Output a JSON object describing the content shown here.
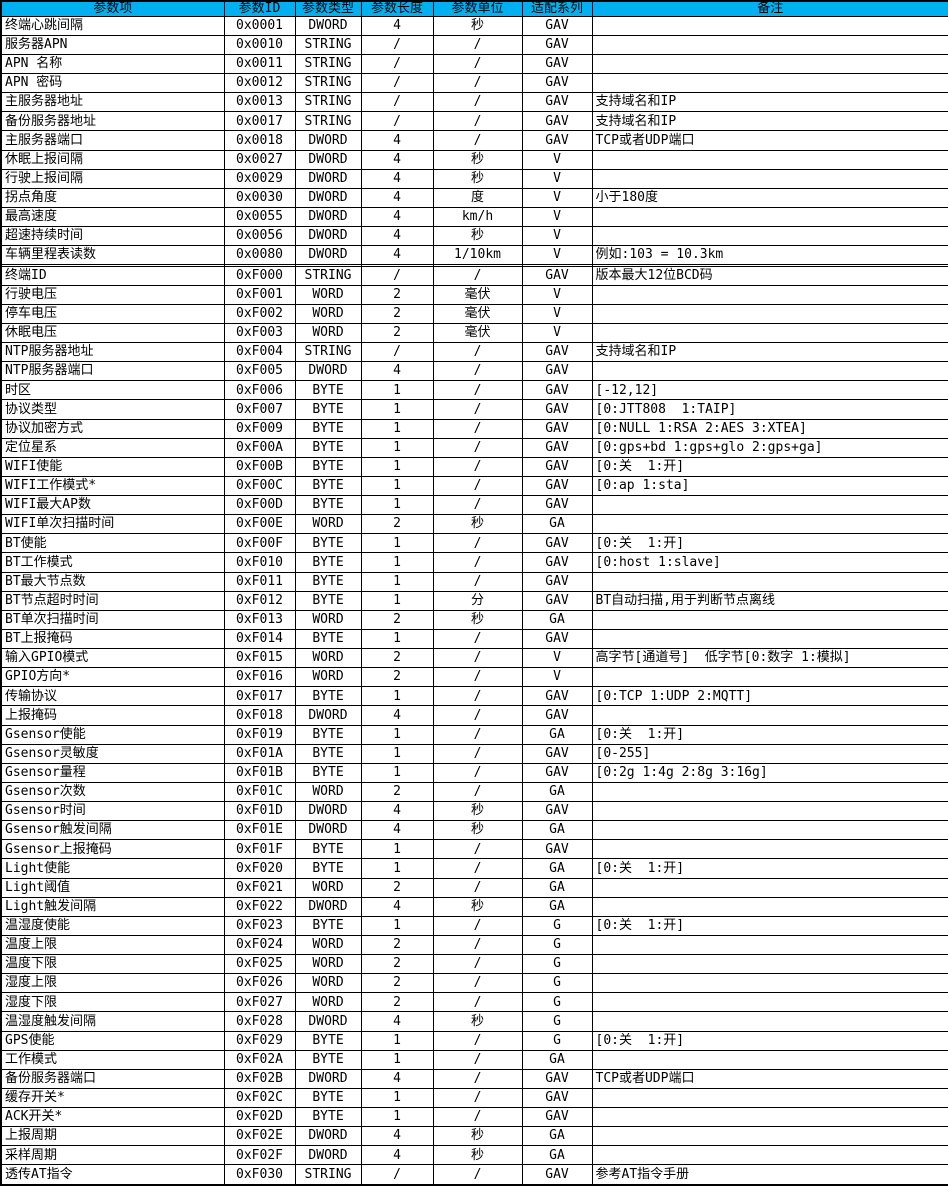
{
  "colors": {
    "header_bg": "#00B0F0",
    "header_text": "#000000",
    "border": "#000000",
    "row_bg": "#FFFFFF"
  },
  "table": {
    "columns": [
      "参数项",
      "参数ID",
      "参数类型",
      "参数长度",
      "参数单位",
      "适配系列",
      "备注"
    ],
    "rows": [
      [
        "终端心跳间隔",
        "0x0001",
        "DWORD",
        "4",
        "秒",
        "GAV",
        ""
      ],
      [
        "服务器APN",
        "0x0010",
        "STRING",
        "/",
        "/",
        "GAV",
        ""
      ],
      [
        "APN 名称",
        "0x0011",
        "STRING",
        "/",
        "/",
        "GAV",
        ""
      ],
      [
        "APN 密码",
        "0x0012",
        "STRING",
        "/",
        "/",
        "GAV",
        ""
      ],
      [
        "主服务器地址",
        "0x0013",
        "STRING",
        "/",
        "/",
        "GAV",
        "支持域名和IP"
      ],
      [
        "备份服务器地址",
        "0x0017",
        "STRING",
        "/",
        "/",
        "GAV",
        "支持域名和IP"
      ],
      [
        "主服务器端口",
        "0x0018",
        "DWORD",
        "4",
        "/",
        "GAV",
        "TCP或者UDP端口"
      ],
      [
        "休眠上报间隔",
        "0x0027",
        "DWORD",
        "4",
        "秒",
        "V",
        ""
      ],
      [
        "行驶上报间隔",
        "0x0029",
        "DWORD",
        "4",
        "秒",
        "V",
        ""
      ],
      [
        "拐点角度",
        "0x0030",
        "DWORD",
        "4",
        "度",
        "V",
        "小于180度"
      ],
      [
        "最高速度",
        "0x0055",
        "DWORD",
        "4",
        "km/h",
        "V",
        ""
      ],
      [
        "超速持续时间",
        "0x0056",
        "DWORD",
        "4",
        "秒",
        "V",
        ""
      ],
      [
        "车辆里程表读数",
        "0x0080",
        "DWORD",
        "4",
        "1/10km",
        "V",
        "例如:103 = 10.3km"
      ],
      [
        "",
        "",
        "",
        "",
        "",
        "",
        ""
      ],
      [
        "终端ID",
        "0xF000",
        "STRING",
        "/",
        "/",
        "GAV",
        "版本最大12位BCD码"
      ],
      [
        "行驶电压",
        "0xF001",
        "WORD",
        "2",
        "毫伏",
        "V",
        ""
      ],
      [
        "停车电压",
        "0xF002",
        "WORD",
        "2",
        "毫伏",
        "V",
        ""
      ],
      [
        "休眠电压",
        "0xF003",
        "WORD",
        "2",
        "毫伏",
        "V",
        ""
      ],
      [
        "NTP服务器地址",
        "0xF004",
        "STRING",
        "/",
        "/",
        "GAV",
        "支持域名和IP"
      ],
      [
        "NTP服务器端口",
        "0xF005",
        "DWORD",
        "4",
        "/",
        "GAV",
        ""
      ],
      [
        "时区",
        "0xF006",
        "BYTE",
        "1",
        "/",
        "GAV",
        "[-12,12]"
      ],
      [
        "协议类型",
        "0xF007",
        "BYTE",
        "1",
        "/",
        "GAV",
        "[0:JTT808  1:TAIP]"
      ],
      [
        "协议加密方式",
        "0xF009",
        "BYTE",
        "1",
        "/",
        "GAV",
        "[0:NULL 1:RSA 2:AES 3:XTEA]"
      ],
      [
        "定位星系",
        "0xF00A",
        "BYTE",
        "1",
        "/",
        "GAV",
        "[0:gps+bd 1:gps+glo 2:gps+ga]"
      ],
      [
        "WIFI使能",
        "0xF00B",
        "BYTE",
        "1",
        "/",
        "GAV",
        "[0:关  1:开]"
      ],
      [
        "WIFI工作模式*",
        "0xF00C",
        "BYTE",
        "1",
        "/",
        "GAV",
        "[0:ap 1:sta]"
      ],
      [
        "WIFI最大AP数",
        "0xF00D",
        "BYTE",
        "1",
        "/",
        "GAV",
        ""
      ],
      [
        "WIFI单次扫描时间",
        "0xF00E",
        "WORD",
        "2",
        "秒",
        "GA",
        ""
      ],
      [
        "BT使能",
        "0xF00F",
        "BYTE",
        "1",
        "/",
        "GAV",
        "[0:关  1:开]"
      ],
      [
        "BT工作模式",
        "0xF010",
        "BYTE",
        "1",
        "/",
        "GAV",
        "[0:host 1:slave]"
      ],
      [
        "BT最大节点数",
        "0xF011",
        "BYTE",
        "1",
        "/",
        "GAV",
        ""
      ],
      [
        "BT节点超时时间",
        "0xF012",
        "BYTE",
        "1",
        "分",
        "GAV",
        "BT自动扫描,用于判断节点离线"
      ],
      [
        "BT单次扫描时间",
        "0xF013",
        "WORD",
        "2",
        "秒",
        "GA",
        ""
      ],
      [
        "BT上报掩码",
        "0xF014",
        "BYTE",
        "1",
        "/",
        "GAV",
        ""
      ],
      [
        "输入GPIO模式",
        "0xF015",
        "WORD",
        "2",
        "/",
        "V",
        "高字节[通道号]  低字节[0:数字 1:模拟]"
      ],
      [
        "GPIO方向*",
        "0xF016",
        "WORD",
        "2",
        "/",
        "V",
        ""
      ],
      [
        "传输协议",
        "0xF017",
        "BYTE",
        "1",
        "/",
        "GAV",
        "[0:TCP 1:UDP 2:MQTT]"
      ],
      [
        "上报掩码",
        "0xF018",
        "DWORD",
        "4",
        "/",
        "GAV",
        ""
      ],
      [
        "Gsensor使能",
        "0xF019",
        "BYTE",
        "1",
        "/",
        "GA",
        "[0:关  1:开]"
      ],
      [
        "Gsensor灵敏度",
        "0xF01A",
        "BYTE",
        "1",
        "/",
        "GAV",
        "[0-255]"
      ],
      [
        "Gsensor量程",
        "0xF01B",
        "BYTE",
        "1",
        "/",
        "GAV",
        "[0:2g 1:4g 2:8g 3:16g]"
      ],
      [
        "Gsensor次数",
        "0xF01C",
        "WORD",
        "2",
        "/",
        "GA",
        ""
      ],
      [
        "Gsensor时间",
        "0xF01D",
        "DWORD",
        "4",
        "秒",
        "GAV",
        ""
      ],
      [
        "Gsensor触发间隔",
        "0xF01E",
        "DWORD",
        "4",
        "秒",
        "GA",
        ""
      ],
      [
        "Gsensor上报掩码",
        "0xF01F",
        "BYTE",
        "1",
        "/",
        "GAV",
        ""
      ],
      [
        "Light使能",
        "0xF020",
        "BYTE",
        "1",
        "/",
        "GA",
        "[0:关  1:开]"
      ],
      [
        "Light阈值",
        "0xF021",
        "WORD",
        "2",
        "/",
        "GA",
        ""
      ],
      [
        "Light触发间隔",
        "0xF022",
        "DWORD",
        "4",
        "秒",
        "GA",
        ""
      ],
      [
        "温湿度使能",
        "0xF023",
        "BYTE",
        "1",
        "/",
        "G",
        "[0:关  1:开]"
      ],
      [
        "温度上限",
        "0xF024",
        "WORD",
        "2",
        "/",
        "G",
        ""
      ],
      [
        "温度下限",
        "0xF025",
        "WORD",
        "2",
        "/",
        "G",
        ""
      ],
      [
        "湿度上限",
        "0xF026",
        "WORD",
        "2",
        "/",
        "G",
        ""
      ],
      [
        "湿度下限",
        "0xF027",
        "WORD",
        "2",
        "/",
        "G",
        ""
      ],
      [
        "温湿度触发间隔",
        "0xF028",
        "DWORD",
        "4",
        "秒",
        "G",
        ""
      ],
      [
        "GPS使能",
        "0xF029",
        "BYTE",
        "1",
        "/",
        "G",
        "[0:关  1:开]"
      ],
      [
        "工作模式",
        "0xF02A",
        "BYTE",
        "1",
        "/",
        "GA",
        ""
      ],
      [
        "备份服务器端口",
        "0xF02B",
        "DWORD",
        "4",
        "/",
        "GAV",
        "TCP或者UDP端口"
      ],
      [
        "缓存开关*",
        "0xF02C",
        "BYTE",
        "1",
        "/",
        "GAV",
        ""
      ],
      [
        "ACK开关*",
        "0xF02D",
        "BYTE",
        "1",
        "/",
        "GAV",
        ""
      ],
      [
        "上报周期",
        "0xF02E",
        "DWORD",
        "4",
        "秒",
        "GA",
        ""
      ],
      [
        "采样周期",
        "0xF02F",
        "DWORD",
        "4",
        "秒",
        "GA",
        ""
      ],
      [
        "透传AT指令",
        "0xF030",
        "STRING",
        "/",
        "/",
        "GAV",
        "参考AT指令手册"
      ]
    ]
  }
}
